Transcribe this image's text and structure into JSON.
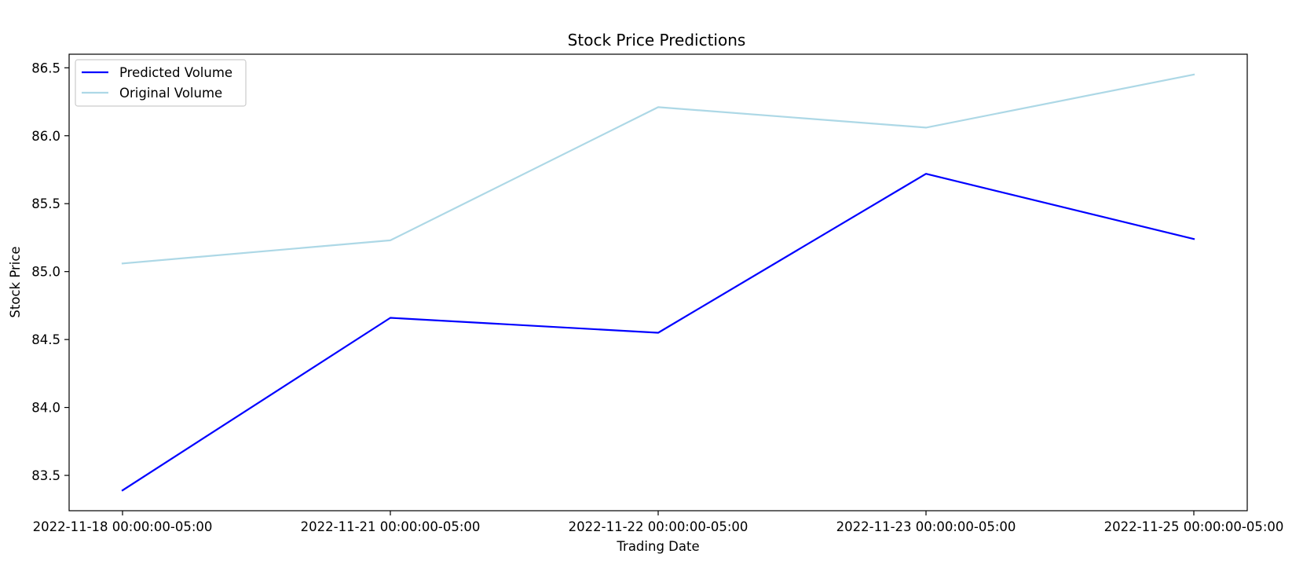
{
  "chart_data": {
    "type": "line",
    "title": "Stock Price Predictions",
    "xlabel": "Trading Date",
    "ylabel": "Stock Price",
    "categories": [
      "2022-11-18 00:00:00-05:00",
      "2022-11-21 00:00:00-05:00",
      "2022-11-22 00:00:00-05:00",
      "2022-11-23 00:00:00-05:00",
      "2022-11-25 00:00:00-05:00"
    ],
    "series": [
      {
        "name": "Predicted Volume",
        "color": "#0000ff",
        "values": [
          83.39,
          84.66,
          84.55,
          85.72,
          85.24
        ]
      },
      {
        "name": "Original Volume",
        "color": "#add8e6",
        "values": [
          85.06,
          85.23,
          86.21,
          86.06,
          86.45
        ]
      }
    ],
    "yticks": [
      "83.5",
      "84.0",
      "84.5",
      "85.0",
      "85.5",
      "86.0",
      "86.5"
    ],
    "ylim": [
      83.24,
      86.6
    ],
    "grid": false,
    "legend_position": "upper left"
  }
}
